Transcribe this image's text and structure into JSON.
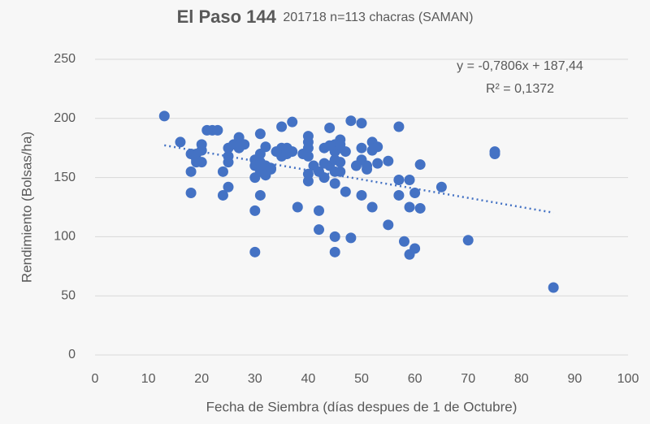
{
  "chart_data": {
    "type": "scatter",
    "title": "El Paso 144",
    "subtitle": "201718 n=113 chacras (SAMAN)",
    "xlabel": "Fecha de Siembra (días despues de 1 de Octubre)",
    "ylabel": "Rendimiento (Bolsas/ha)",
    "color": "#4472c4",
    "grid": true,
    "xlim": [
      0,
      100
    ],
    "xticks": [
      0,
      10,
      20,
      30,
      40,
      50,
      60,
      70,
      80,
      90,
      100
    ],
    "ylim": [
      0,
      250
    ],
    "yticks": [
      0,
      50,
      100,
      150,
      200,
      250
    ],
    "x": [
      13,
      16,
      18,
      18,
      18,
      19,
      19,
      20,
      20,
      20,
      22,
      23,
      24,
      24,
      25,
      25,
      25,
      25,
      27,
      27,
      28,
      30,
      30,
      30,
      30,
      30,
      31,
      31,
      31,
      31,
      31,
      32,
      32,
      32,
      33,
      35,
      35,
      35,
      36,
      36,
      37,
      37,
      38,
      40,
      40,
      40,
      40,
      40,
      40,
      42,
      42,
      42,
      43,
      43,
      43,
      44,
      44,
      45,
      45,
      45,
      45,
      45,
      45,
      45,
      46,
      46,
      46,
      46,
      47,
      47,
      48,
      48,
      50,
      50,
      50,
      50,
      51,
      52,
      52,
      52,
      53,
      55,
      55,
      57,
      57,
      57,
      58,
      59,
      59,
      59,
      60,
      60,
      61,
      61,
      65,
      70,
      75,
      75,
      86,
      19,
      21,
      26,
      33,
      36,
      41,
      44,
      46,
      49,
      51,
      53,
      27,
      39,
      34
    ],
    "y": [
      202,
      180,
      170,
      155,
      137,
      163,
      165,
      178,
      173,
      163,
      190,
      190,
      155,
      135,
      175,
      168,
      163,
      142,
      184,
      175,
      178,
      165,
      160,
      150,
      122,
      87,
      187,
      170,
      163,
      155,
      135,
      176,
      160,
      152,
      157,
      193,
      175,
      168,
      172,
      175,
      197,
      172,
      125,
      185,
      180,
      175,
      168,
      153,
      147,
      122,
      106,
      155,
      175,
      162,
      150,
      192,
      160,
      178,
      172,
      165,
      155,
      145,
      100,
      87,
      182,
      175,
      163,
      155,
      172,
      138,
      198,
      99,
      196,
      175,
      165,
      135,
      157,
      180,
      173,
      125,
      162,
      164,
      110,
      193,
      148,
      135,
      96,
      148,
      125,
      85,
      137,
      90,
      161,
      124,
      142,
      97,
      172,
      170,
      57,
      170,
      190,
      178,
      158,
      170,
      160,
      177,
      178,
      160,
      160,
      176,
      177,
      170,
      172
    ],
    "trendline": {
      "slope": -0.7806,
      "intercept": 187.44,
      "x_range": [
        13,
        86
      ],
      "equation": "y = -0,7806x + 187,44",
      "r2": "R² = 0,1372"
    }
  }
}
